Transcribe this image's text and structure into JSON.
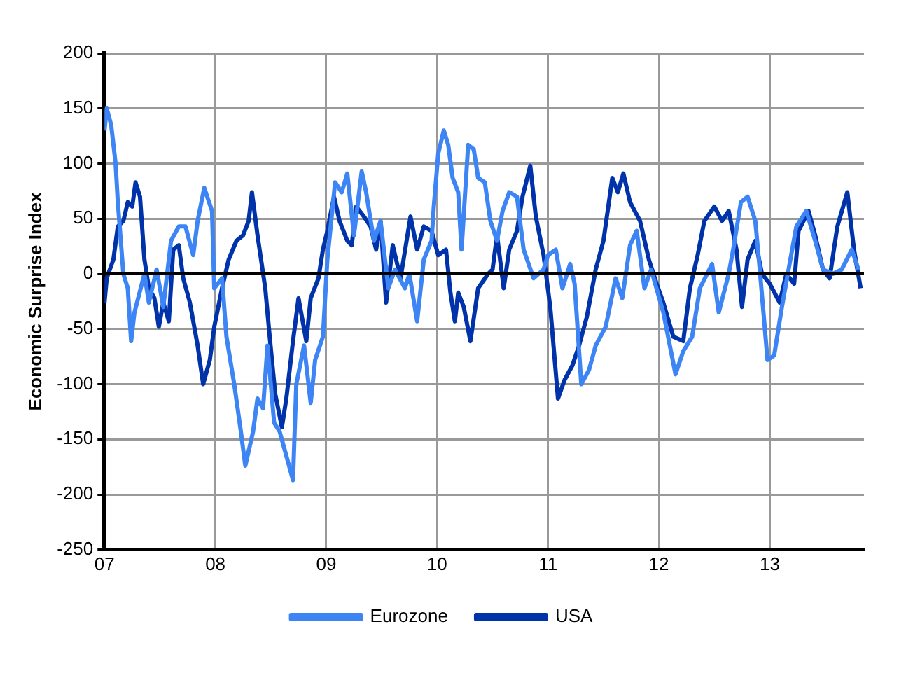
{
  "chart_data": {
    "type": "line",
    "ylabel": "Economic Surprise Index",
    "xlim": [
      2007,
      2013.85
    ],
    "xticks": [
      {
        "value": 2007,
        "label": "07"
      },
      {
        "value": 2008,
        "label": "08"
      },
      {
        "value": 2009,
        "label": "09"
      },
      {
        "value": 2010,
        "label": "10"
      },
      {
        "value": 2011,
        "label": "11"
      },
      {
        "value": 2012,
        "label": "12"
      },
      {
        "value": 2013,
        "label": "13"
      }
    ],
    "ylim": [
      -250,
      200
    ],
    "yticks": [
      -250,
      -200,
      -150,
      -100,
      -50,
      0,
      50,
      100,
      150,
      200
    ],
    "grid": true,
    "legend": "bottom",
    "marker": "none",
    "line_style": "solid",
    "ref_lines": [
      {
        "axis": "y",
        "value": 0,
        "color": "#000000"
      }
    ],
    "series": [
      {
        "name": "Eurozone",
        "color": "#3d85f5",
        "x": [
          2007.0,
          2007.02,
          2007.06,
          2007.1,
          2007.12,
          2007.17,
          2007.21,
          2007.24,
          2007.27,
          2007.36,
          2007.4,
          2007.47,
          2007.53,
          2007.6,
          2007.67,
          2007.73,
          2007.8,
          2007.84,
          2007.9,
          2007.97,
          2007.99,
          2008.06,
          2008.1,
          2008.17,
          2008.23,
          2008.27,
          2008.34,
          2008.38,
          2008.43,
          2008.47,
          2008.53,
          2008.58,
          2008.64,
          2008.7,
          2008.73,
          2008.8,
          2008.86,
          2008.9,
          2008.97,
          2009.01,
          2009.08,
          2009.14,
          2009.19,
          2009.25,
          2009.32,
          2009.36,
          2009.43,
          2009.49,
          2009.56,
          2009.62,
          2009.71,
          2009.75,
          2009.82,
          2009.88,
          2009.95,
          2009.97,
          2010.01,
          2010.06,
          2010.1,
          2010.14,
          2010.19,
          2010.22,
          2010.28,
          2010.33,
          2010.37,
          2010.43,
          2010.48,
          2010.54,
          2010.59,
          2010.65,
          2010.72,
          2010.78,
          2010.87,
          2010.96,
          2011.0,
          2011.07,
          2011.13,
          2011.2,
          2011.24,
          2011.3,
          2011.37,
          2011.43,
          2011.52,
          2011.61,
          2011.67,
          2011.74,
          2011.8,
          2011.87,
          2011.93,
          2012.04,
          2012.15,
          2012.22,
          2012.3,
          2012.37,
          2012.48,
          2012.54,
          2012.63,
          2012.67,
          2012.74,
          2012.8,
          2012.87,
          2012.91,
          2012.98,
          2013.04,
          2013.11,
          2013.17,
          2013.24,
          2013.33,
          2013.41,
          2013.48,
          2013.57,
          2013.65,
          2013.74,
          2013.8
        ],
        "values": [
          130,
          150,
          135,
          100,
          65,
          0,
          -13,
          -61,
          -35,
          0,
          -26,
          4,
          -30,
          30,
          43,
          43,
          17,
          48,
          78,
          57,
          -13,
          -4,
          -57,
          -100,
          -143,
          -174,
          -143,
          -113,
          -122,
          -65,
          -135,
          -143,
          -165,
          -187,
          -100,
          -65,
          -117,
          -78,
          -57,
          13,
          83,
          74,
          91,
          35,
          93,
          74,
          30,
          48,
          -13,
          4,
          -13,
          0,
          -43,
          13,
          30,
          61,
          109,
          130,
          117,
          87,
          74,
          22,
          117,
          113,
          87,
          83,
          48,
          30,
          57,
          74,
          70,
          22,
          -4,
          4,
          17,
          22,
          -13,
          9,
          -9,
          -100,
          -87,
          -65,
          -48,
          -4,
          -22,
          26,
          39,
          -13,
          4,
          -35,
          -91,
          -70,
          -57,
          -13,
          9,
          -35,
          0,
          22,
          65,
          70,
          48,
          4,
          -78,
          -74,
          -30,
          4,
          43,
          57,
          30,
          4,
          0,
          4,
          22,
          4
        ]
      },
      {
        "name": "USA",
        "color": "#0033aa",
        "x": [
          2007.0,
          2007.02,
          2007.08,
          2007.12,
          2007.17,
          2007.21,
          2007.25,
          2007.28,
          2007.32,
          2007.36,
          2007.4,
          2007.45,
          2007.49,
          2007.53,
          2007.58,
          2007.62,
          2007.67,
          2007.71,
          2007.77,
          2007.84,
          2007.89,
          2007.95,
          2007.99,
          2008.06,
          2008.12,
          2008.19,
          2008.25,
          2008.3,
          2008.33,
          2008.38,
          2008.45,
          2008.49,
          2008.54,
          2008.6,
          2008.64,
          2008.7,
          2008.75,
          2008.82,
          2008.86,
          2008.93,
          2008.97,
          2009.01,
          2009.07,
          2009.12,
          2009.19,
          2009.23,
          2009.27,
          2009.34,
          2009.4,
          2009.45,
          2009.49,
          2009.54,
          2009.6,
          2009.67,
          2009.76,
          2009.82,
          2009.88,
          2009.95,
          2010.01,
          2010.08,
          2010.12,
          2010.16,
          2010.19,
          2010.24,
          2010.3,
          2010.37,
          2010.46,
          2010.5,
          2010.54,
          2010.6,
          2010.65,
          2010.72,
          2010.77,
          2010.84,
          2010.89,
          2010.96,
          2011.02,
          2011.09,
          2011.15,
          2011.22,
          2011.28,
          2011.35,
          2011.43,
          2011.5,
          2011.58,
          2011.63,
          2011.68,
          2011.74,
          2011.83,
          2011.91,
          2011.98,
          2012.04,
          2012.13,
          2012.22,
          2012.28,
          2012.35,
          2012.41,
          2012.5,
          2012.57,
          2012.63,
          2012.7,
          2012.75,
          2012.8,
          2012.87,
          2012.93,
          2013.0,
          2013.09,
          2013.15,
          2013.22,
          2013.26,
          2013.35,
          2013.41,
          2013.48,
          2013.54,
          2013.61,
          2013.7,
          2013.76,
          2013.82
        ],
        "values": [
          -26,
          -4,
          13,
          43,
          48,
          65,
          61,
          83,
          70,
          13,
          -13,
          -22,
          -48,
          -26,
          -43,
          22,
          26,
          -4,
          -26,
          -65,
          -100,
          -78,
          -48,
          -13,
          13,
          30,
          35,
          48,
          74,
          35,
          -13,
          -57,
          -109,
          -139,
          -113,
          -61,
          -22,
          -61,
          -22,
          -4,
          22,
          39,
          70,
          48,
          30,
          26,
          61,
          52,
          43,
          22,
          48,
          -26,
          26,
          -4,
          52,
          22,
          43,
          39,
          17,
          22,
          -17,
          -43,
          -17,
          -30,
          -61,
          -13,
          0,
          4,
          35,
          -13,
          22,
          39,
          70,
          98,
          52,
          17,
          -30,
          -113,
          -96,
          -83,
          -65,
          -39,
          4,
          30,
          87,
          74,
          91,
          65,
          48,
          13,
          -9,
          -26,
          -57,
          -61,
          -13,
          17,
          48,
          61,
          48,
          57,
          22,
          -30,
          13,
          30,
          0,
          -9,
          -26,
          0,
          -9,
          39,
          57,
          35,
          4,
          -4,
          43,
          74,
          22,
          -13
        ]
      }
    ]
  }
}
